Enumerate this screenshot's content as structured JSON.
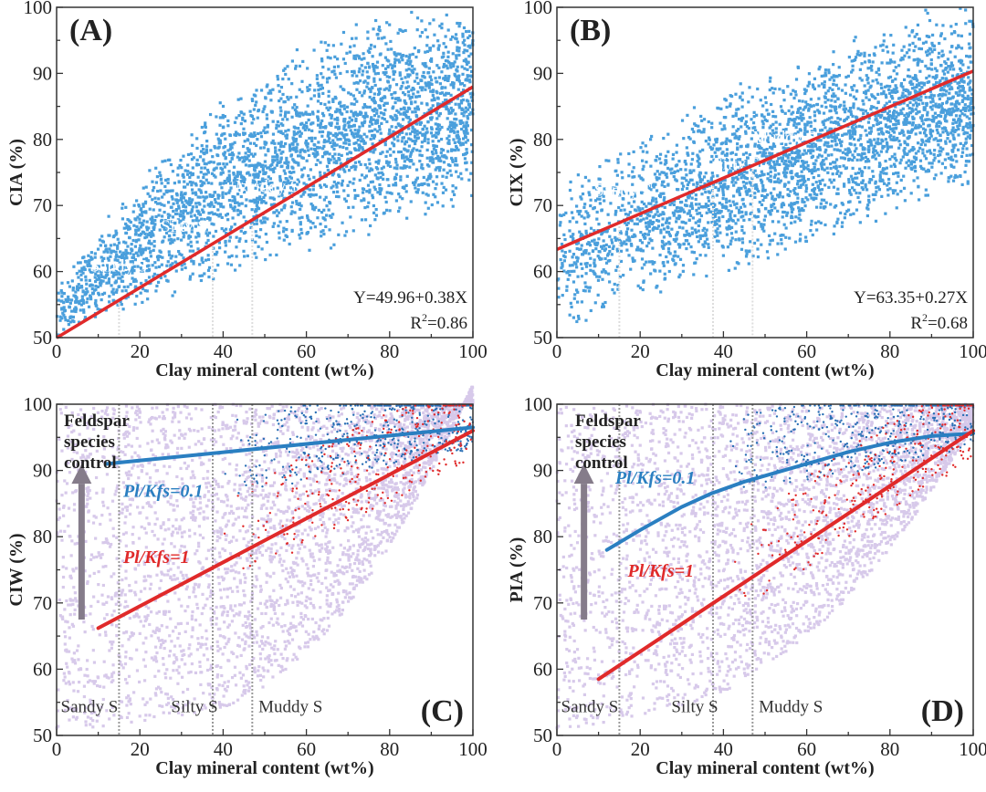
{
  "chart_data": [
    {
      "type": "scatter",
      "panel_label": "(A)",
      "xlabel": "Clay mineral content (wt%)",
      "ylabel": "CIA (%)",
      "xlim": [
        0,
        100
      ],
      "ylim": [
        50,
        100
      ],
      "xticks": [
        "0",
        "20",
        "40",
        "60",
        "80",
        "100"
      ],
      "yticks": [
        "50",
        "60",
        "70",
        "80",
        "90",
        "100"
      ],
      "point_color": "#4a9fdc",
      "regression": {
        "intercept": 49.96,
        "slope": 0.38,
        "color": "#e02a2a",
        "equation": "Y=49.96+0.38X",
        "r2_label": "R",
        "r2_value": "=0.86"
      },
      "dividers": [
        15,
        37.5,
        47
      ],
      "class_labels": [
        {
          "text": "Sandy S",
          "x": 15,
          "y": 60
        },
        {
          "text": "Silty S",
          "x": 30,
          "y": 66
        },
        {
          "text": "Muddy S",
          "x": 47,
          "y": 72
        }
      ],
      "class_label_color": "#ffffff"
    },
    {
      "type": "scatter",
      "panel_label": "(B)",
      "xlabel": "Clay mineral content (wt%)",
      "ylabel": "CIX (%)",
      "xlim": [
        0,
        100
      ],
      "ylim": [
        50,
        100
      ],
      "xticks": [
        "0",
        "20",
        "40",
        "60",
        "80",
        "100"
      ],
      "yticks": [
        "50",
        "60",
        "70",
        "80",
        "90",
        "100"
      ],
      "point_color": "#4a9fdc",
      "regression": {
        "intercept": 63.35,
        "slope": 0.27,
        "color": "#e02a2a",
        "equation": "Y=63.35+0.27X",
        "r2_label": "R",
        "r2_value": "=0.68"
      },
      "dividers": [
        15,
        37.5,
        47
      ],
      "class_labels": [
        {
          "text": "Sandy S",
          "x": 15,
          "y": 71.5
        },
        {
          "text": "Silty S",
          "x": 37.5,
          "y": 75.5
        },
        {
          "text": "Muddy S",
          "x": 47,
          "y": 79.5
        }
      ],
      "class_label_color": "#ffffff"
    },
    {
      "type": "scatter",
      "panel_label": "(C)",
      "xlabel": "Clay mineral content (wt%)",
      "ylabel": "CIW (%)",
      "xlim": [
        0,
        100
      ],
      "ylim": [
        50,
        100
      ],
      "xticks": [
        "0",
        "20",
        "40",
        "60",
        "80",
        "100"
      ],
      "yticks": [
        "50",
        "60",
        "70",
        "80",
        "90",
        "100"
      ],
      "point_color": "#d7c9ea",
      "annotation": [
        "Feldspar",
        "species",
        "control"
      ],
      "arrow_color": "#857c8a",
      "curves": [
        {
          "name": "Pl/Kfs=0.1",
          "color": "#2a7fc1",
          "x": [
            12,
            100
          ],
          "y": [
            91,
            96.5
          ]
        },
        {
          "name": "Pl/Kfs=1",
          "color": "#e02a2a",
          "x": [
            10,
            100
          ],
          "y": [
            66.2,
            96
          ]
        }
      ],
      "dividers": [
        15,
        37.5,
        47
      ],
      "class_labels": [
        {
          "text": "Sandy S"
        },
        {
          "text": "Silty S"
        },
        {
          "text": "Muddy S"
        }
      ],
      "class_label_color": "#333333"
    },
    {
      "type": "scatter",
      "panel_label": "(D)",
      "xlabel": "Clay mineral content (wt%)",
      "ylabel": "PIA (%)",
      "xlim": [
        0,
        100
      ],
      "ylim": [
        50,
        100
      ],
      "xticks": [
        "0",
        "20",
        "40",
        "60",
        "80",
        "100"
      ],
      "yticks": [
        "50",
        "60",
        "70",
        "80",
        "90",
        "100"
      ],
      "point_color": "#d7c9ea",
      "annotation": [
        "Feldspar",
        "species",
        "control"
      ],
      "arrow_color": "#857c8a",
      "curves": [
        {
          "name": "Pl/Kfs=0.1",
          "color": "#2a7fc1",
          "x": [
            12,
            20,
            30,
            37,
            45,
            60,
            70,
            80,
            90,
            100
          ],
          "y": [
            78,
            81,
            84.5,
            86.5,
            88.3,
            91,
            92.8,
            94.2,
            95.2,
            95.6
          ]
        },
        {
          "name": "Pl/Kfs=1",
          "color": "#e02a2a",
          "x": [
            10,
            100
          ],
          "y": [
            58.5,
            96
          ]
        }
      ],
      "dividers": [
        15,
        37.5,
        47
      ],
      "class_labels": [
        {
          "text": "Sandy S"
        },
        {
          "text": "Silty S"
        },
        {
          "text": "Muddy S"
        }
      ],
      "class_label_color": "#333333"
    }
  ]
}
